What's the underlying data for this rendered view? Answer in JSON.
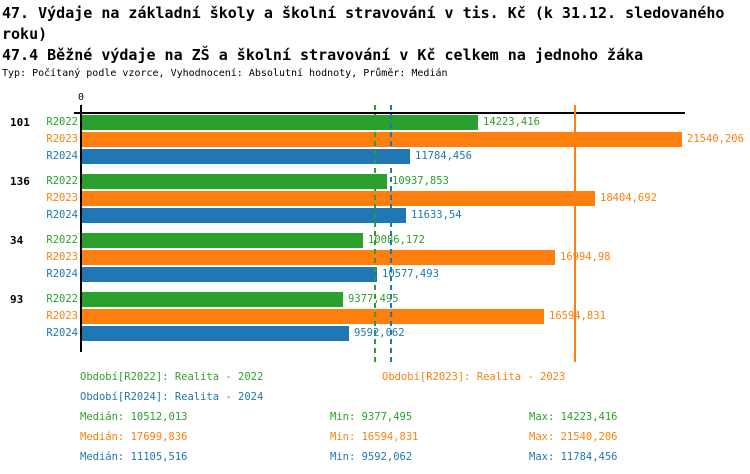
{
  "header": {
    "title": "47. Výdaje na základní školy a školní stravování v tis. Kč (k 31.12. sledovaného roku)",
    "subtitle": "47.4 Běžné výdaje na ZŠ a školní stravování v Kč celkem na jednoho žáka",
    "meta": "Typ: Počítaný podle vzorce, Vyhodnocení: Absolutní hodnoty, Průměr: Medián"
  },
  "chart_data": {
    "type": "bar",
    "orientation": "horizontal",
    "title": "47.4 Běžné výdaje na ZŠ a školní stravování v Kč celkem na jednoho žáka",
    "x_axis_tick_label": "0",
    "xlim": [
      0,
      21650
    ],
    "grid": false,
    "series": [
      {
        "name": "R2022",
        "color": "#2ca02c"
      },
      {
        "name": "R2023",
        "color": "#ff7f0e"
      },
      {
        "name": "R2024",
        "color": "#1f77b4"
      }
    ],
    "categories": [
      "101",
      "136",
      "34",
      "93"
    ],
    "groups": [
      {
        "category": "101",
        "values": [
          14223.416,
          21540.206,
          11784.456
        ],
        "labels": [
          "14223,416",
          "21540,206",
          "11784,456"
        ]
      },
      {
        "category": "136",
        "values": [
          10937.853,
          18404.692,
          11633.54
        ],
        "labels": [
          "10937,853",
          "18404,692",
          "11633,54"
        ]
      },
      {
        "category": "34",
        "values": [
          10086.172,
          16994.98,
          10577.493
        ],
        "labels": [
          "10086,172",
          "16994,98",
          "10577,493"
        ]
      },
      {
        "category": "93",
        "values": [
          9377.495,
          16594.831,
          9592.062
        ],
        "labels": [
          "9377,495",
          "16594,831",
          "9592,062"
        ]
      }
    ],
    "median_lines": [
      {
        "series": "R2022",
        "value": 10512.013,
        "color": "#2ca02c",
        "style": "dashed"
      },
      {
        "series": "R2023",
        "value": 17699.836,
        "color": "#ff7f0e",
        "style": "solid"
      },
      {
        "series": "R2024",
        "value": 11105.516,
        "color": "#1f77b4",
        "style": "dashed"
      }
    ]
  },
  "legend": {
    "r2022": {
      "label": "Období[R2022]: Realita - 2022",
      "color": "#2ca02c"
    },
    "r2023": {
      "label": "Období[R2023]: Realita - 2023",
      "color": "#ff7f0e"
    },
    "r2024": {
      "label": "Období[R2024]: Realita - 2024",
      "color": "#1f77b4"
    }
  },
  "stats": [
    {
      "median": "Medián: 10512,013",
      "min": "Min: 9377,495",
      "max": "Max: 14223,416",
      "color": "#2ca02c"
    },
    {
      "median": "Medián: 17699,836",
      "min": "Min: 16594,831",
      "max": "Max: 21540,206",
      "color": "#ff7f0e"
    },
    {
      "median": "Medián: 11105,516",
      "min": "Min: 9592,062",
      "max": "Max: 11784,456",
      "color": "#1f77b4"
    }
  ]
}
